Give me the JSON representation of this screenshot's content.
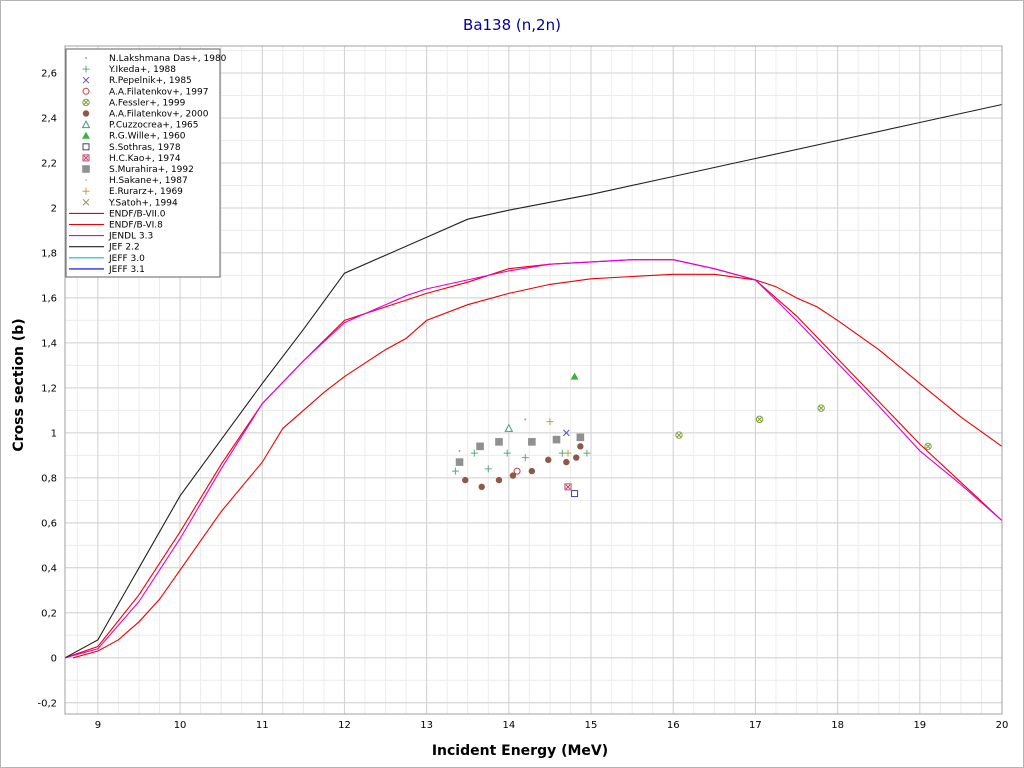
{
  "chart_data": {
    "type": "scatter",
    "title": "Ba138 (n,2n)",
    "xlabel": "Incident Energy (MeV)",
    "ylabel": "Cross section (b)",
    "xlim": [
      8.6,
      20
    ],
    "ylim": [
      -0.25,
      2.72
    ],
    "x_ticks": [
      "9",
      "10",
      "11",
      "12",
      "13",
      "14",
      "15",
      "16",
      "17",
      "18",
      "19",
      "20"
    ],
    "y_ticks": [
      "-0,2",
      "0",
      "0,2",
      "0,4",
      "0,6",
      "0,8",
      "1",
      "1,2",
      "1,4",
      "1,6",
      "1,8",
      "2",
      "2,2",
      "2,4",
      "2,6"
    ],
    "grid": true,
    "legend_position": "top-left",
    "series": [
      {
        "name": "N.Lakshmana Das+, 1980",
        "kind": "points",
        "marker": "dot",
        "color": "#a0a0a0",
        "points": [
          [
            13.4,
            0.92
          ],
          [
            14.2,
            1.06
          ]
        ]
      },
      {
        "name": "Y.Ikeda+, 1988",
        "kind": "points",
        "marker": "plus",
        "color": "#60a880",
        "points": [
          [
            13.35,
            0.83
          ],
          [
            13.58,
            0.91
          ],
          [
            13.75,
            0.84
          ],
          [
            13.98,
            0.91
          ],
          [
            14.2,
            0.89
          ],
          [
            14.65,
            0.91
          ],
          [
            14.95,
            0.91
          ]
        ]
      },
      {
        "name": "R.Pepelnik+, 1985",
        "kind": "points",
        "marker": "cross",
        "color": "#5050c0",
        "points": [
          [
            14.7,
            1.0
          ]
        ]
      },
      {
        "name": "A.A.Filatenkov+, 1997",
        "kind": "points",
        "marker": "open-circle",
        "color": "#c04040",
        "points": [
          [
            14.1,
            0.83
          ]
        ]
      },
      {
        "name": "A.Fessler+, 1999",
        "kind": "points",
        "marker": "circle-x",
        "color": "#80a040",
        "points": [
          [
            16.07,
            0.99
          ],
          [
            17.05,
            1.06
          ],
          [
            17.8,
            1.11
          ],
          [
            19.1,
            0.94
          ]
        ]
      },
      {
        "name": "A.A.Filatenkov+, 2000",
        "kind": "points",
        "marker": "filled-circle",
        "color": "#8b5a4a",
        "points": [
          [
            13.47,
            0.79
          ],
          [
            13.67,
            0.76
          ],
          [
            13.88,
            0.79
          ],
          [
            14.05,
            0.81
          ],
          [
            14.28,
            0.83
          ],
          [
            14.48,
            0.88
          ],
          [
            14.7,
            0.87
          ],
          [
            14.82,
            0.89
          ],
          [
            14.87,
            0.94
          ]
        ]
      },
      {
        "name": "P.Cuzzocrea+, 1965",
        "kind": "points",
        "marker": "open-triangle",
        "color": "#40a080",
        "points": [
          [
            14.0,
            1.02
          ]
        ]
      },
      {
        "name": "R.G.Wille+, 1960",
        "kind": "points",
        "marker": "filled-triangle",
        "color": "#40b040",
        "points": [
          [
            14.8,
            1.25
          ]
        ]
      },
      {
        "name": "S.Sothras, 1978",
        "kind": "points",
        "marker": "open-square",
        "color": "#404080",
        "points": [
          [
            14.8,
            0.73
          ]
        ]
      },
      {
        "name": "H.C.Kao+, 1974",
        "kind": "points",
        "marker": "square-x",
        "color": "#c04060",
        "points": [
          [
            14.72,
            0.76
          ]
        ]
      },
      {
        "name": "S.Murahira+, 1992",
        "kind": "points",
        "marker": "filled-square",
        "color": "#909090",
        "points": [
          [
            13.4,
            0.87
          ],
          [
            13.65,
            0.94
          ],
          [
            13.88,
            0.96
          ],
          [
            14.28,
            0.96
          ],
          [
            14.58,
            0.97
          ],
          [
            14.87,
            0.98
          ]
        ]
      },
      {
        "name": "H.Sakane+, 1987",
        "kind": "points",
        "marker": "dot",
        "color": "#c0c0c0",
        "points": []
      },
      {
        "name": "E.Rurarz+, 1969",
        "kind": "points",
        "marker": "plus",
        "color": "#c0a040",
        "points": [
          [
            14.5,
            1.05
          ],
          [
            14.72,
            0.91
          ]
        ]
      },
      {
        "name": "Y.Satoh+, 1994",
        "kind": "points",
        "marker": "cross",
        "color": "#a08060",
        "points": []
      },
      {
        "name": "ENDF/B-VII.0",
        "kind": "line",
        "color": "#ee0000",
        "points": [
          [
            8.6,
            0
          ],
          [
            9.0,
            0.05
          ],
          [
            9.5,
            0.28
          ],
          [
            10.0,
            0.56
          ],
          [
            10.5,
            0.86
          ],
          [
            11.0,
            1.13
          ],
          [
            11.5,
            1.32
          ],
          [
            12.0,
            1.5
          ],
          [
            12.5,
            1.56
          ],
          [
            13.0,
            1.62
          ],
          [
            13.5,
            1.67
          ],
          [
            14.0,
            1.73
          ],
          [
            14.5,
            1.75
          ],
          [
            15.0,
            1.76
          ],
          [
            15.5,
            1.77
          ],
          [
            16.0,
            1.77
          ],
          [
            16.5,
            1.73
          ],
          [
            17.0,
            1.68
          ],
          [
            17.5,
            1.52
          ],
          [
            18.0,
            1.33
          ],
          [
            18.5,
            1.14
          ],
          [
            19.0,
            0.95
          ],
          [
            19.5,
            0.78
          ],
          [
            20.0,
            0.61
          ]
        ]
      },
      {
        "name": "ENDF/B-VI.8",
        "kind": "line",
        "color": "#ee0000",
        "points": [
          [
            8.7,
            0
          ],
          [
            9.0,
            0.03
          ],
          [
            9.25,
            0.08
          ],
          [
            9.5,
            0.16
          ],
          [
            9.75,
            0.26
          ],
          [
            10.0,
            0.39
          ],
          [
            10.25,
            0.52
          ],
          [
            10.5,
            0.65
          ],
          [
            10.75,
            0.76
          ],
          [
            11.0,
            0.87
          ],
          [
            11.25,
            1.02
          ],
          [
            11.5,
            1.1
          ],
          [
            11.75,
            1.18
          ],
          [
            12.0,
            1.25
          ],
          [
            12.25,
            1.31
          ],
          [
            12.5,
            1.37
          ],
          [
            12.75,
            1.42
          ],
          [
            13.0,
            1.5
          ],
          [
            13.5,
            1.57
          ],
          [
            14.0,
            1.62
          ],
          [
            14.5,
            1.66
          ],
          [
            15.0,
            1.685
          ],
          [
            15.5,
            1.695
          ],
          [
            16.0,
            1.705
          ],
          [
            16.5,
            1.705
          ],
          [
            17.0,
            1.68
          ],
          [
            17.25,
            1.65
          ],
          [
            17.5,
            1.6
          ],
          [
            17.75,
            1.56
          ],
          [
            18.0,
            1.5
          ],
          [
            18.5,
            1.37
          ],
          [
            19.0,
            1.22
          ],
          [
            19.5,
            1.07
          ],
          [
            20.0,
            0.94
          ]
        ]
      },
      {
        "name": "JENDL 3.3",
        "kind": "line",
        "color": "#e000e0",
        "points": [
          [
            8.6,
            0
          ],
          [
            9.0,
            0.04
          ],
          [
            9.5,
            0.25
          ],
          [
            10.0,
            0.53
          ],
          [
            10.5,
            0.84
          ],
          [
            11.0,
            1.13
          ],
          [
            11.5,
            1.32
          ],
          [
            12.0,
            1.49
          ],
          [
            12.5,
            1.57
          ],
          [
            12.75,
            1.61
          ],
          [
            13.0,
            1.64
          ],
          [
            13.5,
            1.68
          ],
          [
            14.0,
            1.72
          ],
          [
            14.5,
            1.75
          ],
          [
            15.0,
            1.76
          ],
          [
            15.5,
            1.77
          ],
          [
            16.0,
            1.77
          ],
          [
            16.5,
            1.73
          ],
          [
            17.0,
            1.68
          ],
          [
            17.5,
            1.5
          ],
          [
            18.0,
            1.31
          ],
          [
            18.5,
            1.12
          ],
          [
            19.0,
            0.92
          ],
          [
            19.5,
            0.77
          ],
          [
            20.0,
            0.61
          ]
        ]
      },
      {
        "name": "JEF 2.2",
        "kind": "line",
        "color": "#202020",
        "points": [
          [
            8.6,
            0
          ],
          [
            9.0,
            0.08
          ],
          [
            9.5,
            0.4
          ],
          [
            10.0,
            0.72
          ],
          [
            10.5,
            0.97
          ],
          [
            11.0,
            1.22
          ],
          [
            11.5,
            1.46
          ],
          [
            12.0,
            1.71
          ],
          [
            12.5,
            1.79
          ],
          [
            13.0,
            1.87
          ],
          [
            13.5,
            1.95
          ],
          [
            14.0,
            1.99
          ],
          [
            15.0,
            2.06
          ],
          [
            16.0,
            2.14
          ],
          [
            17.0,
            2.22
          ],
          [
            18.0,
            2.3
          ],
          [
            19.0,
            2.38
          ],
          [
            20.0,
            2.46
          ]
        ]
      },
      {
        "name": "JEFF 3.0",
        "kind": "line",
        "color": "#00c0d0",
        "points": []
      },
      {
        "name": "JEFF 3.1",
        "kind": "line",
        "color": "#0000d0",
        "points": []
      }
    ]
  }
}
